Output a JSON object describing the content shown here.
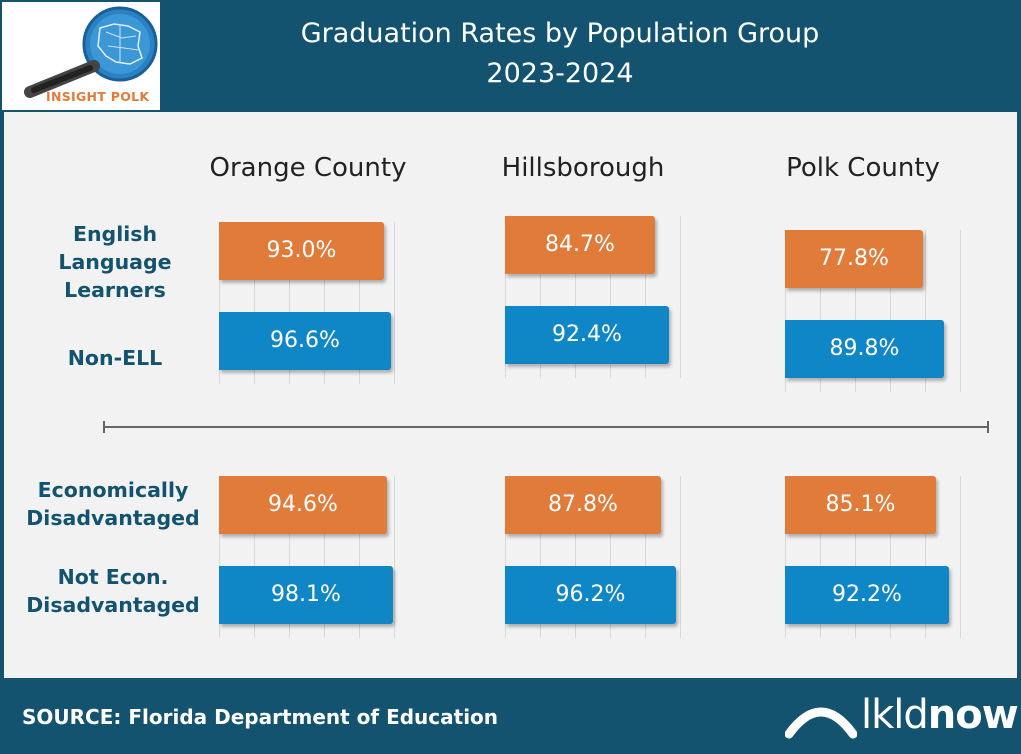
{
  "header": {
    "title_line1": "Graduation Rates by Population Group",
    "title_line2": "2023-2024",
    "logo_text": "INSIGHT POLK",
    "bg_color": "#13536f"
  },
  "colors": {
    "ell_or_econ": "#e07b39",
    "non_group": "#0f87c6"
  },
  "chart_data": {
    "type": "bar",
    "orientation": "horizontal",
    "counties": [
      "Orange County",
      "Hillsborough",
      "Polk County"
    ],
    "groups": [
      {
        "labels": [
          "English Language Learners",
          "Non-ELL"
        ],
        "series": [
          {
            "name": "English Language Learners",
            "values": [
              93.0,
              84.7,
              77.8
            ],
            "labels": [
              "93.0%",
              "84.7%",
              "77.8%"
            ],
            "color": "#e07b39"
          },
          {
            "name": "Non-ELL",
            "values": [
              96.6,
              92.4,
              89.8
            ],
            "labels": [
              "96.6%",
              "92.4%",
              "89.8%"
            ],
            "color": "#0f87c6"
          }
        ]
      },
      {
        "labels": [
          "Economically Disadvantaged",
          "Not Econ. Disadvantaged"
        ],
        "series": [
          {
            "name": "Economically Disadvantaged",
            "values": [
              94.6,
              87.8,
              85.1
            ],
            "labels": [
              "94.6%",
              "87.8%",
              "85.1%"
            ],
            "color": "#e07b39"
          },
          {
            "name": "Not Econ. Disadvantaged",
            "values": [
              98.1,
              96.2,
              92.2
            ],
            "labels": [
              "98.1%",
              "96.2%",
              "92.2%"
            ],
            "color": "#0f87c6"
          }
        ]
      }
    ],
    "grid": true,
    "xlabel": "",
    "ylabel": ""
  },
  "row_labels": {
    "ell": "English Language Learners",
    "non_ell": "Non-ELL",
    "econ": "Economically Disadvantaged",
    "not_econ": "Not Econ. Disadvantaged"
  },
  "footer": {
    "source": "SOURCE: Florida Department of Education",
    "brand_light": "lkld",
    "brand_bold": "now"
  }
}
